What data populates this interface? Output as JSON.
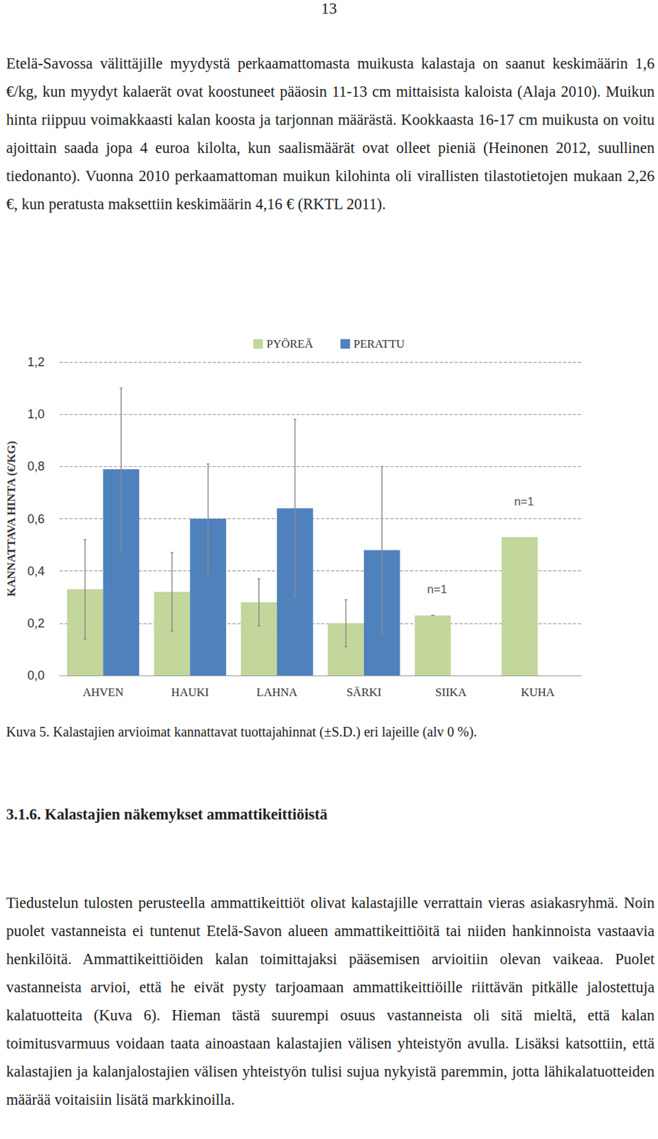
{
  "page_number": "13",
  "text_before": "Etelä-Savossa välittäjille myydystä perkaamattomasta muikusta kalastaja on saanut keskimäärin 1,6 €/kg, kun myydyt kalaerät ovat koostuneet pääosin 11-13 cm mittaisista kaloista (Alaja 2010). Muikun hinta riippuu voimakkaasti kalan koosta ja tarjonnan määrästä. Kookkaasta 16-17 cm muikusta on voitu ajoittain saada jopa 4 euroa kilolta, kun saalismäärät ovat olleet pieniä (Heinonen 2012, suullinen tiedonanto). Vuonna 2010 perkaamattoman muikun kilohinta oli virallisten tilastotietojen mukaan 2,26 €, kun peratusta maksettiin keskimäärin 4,16 € (RKTL 2011).",
  "chart_data": {
    "type": "bar",
    "ylabel": "KANNATTAVA HINTA (€/KG)",
    "categories": [
      "AHVEN",
      "HAUKI",
      "LAHNA",
      "SÄRKI",
      "SIIKA",
      "KUHA"
    ],
    "series": [
      {
        "name": "PYÖREÄ",
        "color": "#c3d69b",
        "values": [
          0.33,
          0.32,
          0.28,
          0.2,
          0.23,
          0.53
        ],
        "errors": [
          0.19,
          0.15,
          0.09,
          0.09,
          0,
          null
        ]
      },
      {
        "name": "PERATTU",
        "color": "#4f81bd",
        "values": [
          0.79,
          0.6,
          0.64,
          0.48,
          null,
          null
        ],
        "errors": [
          0.31,
          0.21,
          0.34,
          0.32,
          null,
          null
        ]
      }
    ],
    "annotations": [
      {
        "text": "n=1",
        "category": "SIIKA",
        "y": 0.33
      },
      {
        "text": "n=1",
        "category": "KUHA",
        "y": 0.665
      }
    ],
    "ylim": [
      0,
      1.2
    ],
    "yticks": [
      {
        "value": 0,
        "label": "0,0"
      },
      {
        "value": 0.2,
        "label": "0,2"
      },
      {
        "value": 0.4,
        "label": "0,4"
      },
      {
        "value": 0.6,
        "label": "0,6"
      },
      {
        "value": 0.8,
        "label": "0,8"
      },
      {
        "value": 1.0,
        "label": "1,0"
      },
      {
        "value": 1.2,
        "label": "1,2"
      }
    ],
    "grid": true,
    "legend": "top"
  },
  "caption": "Kuva 5. Kalastajien arvioimat kannattavat tuottajahinnat (±S.D.) eri lajeille (alv 0 %).",
  "heading": "3.1.6. Kalastajien näkemykset ammattikeittiöistä",
  "text_after": "Tiedustelun tulosten perusteella ammattikeittiöt olivat kalastajille verrattain vieras asiakasryhmä. Noin puolet vastanneista ei tuntenut Etelä-Savon alueen ammattikeittiöitä tai niiden hankinnoista vastaavia henkilöitä. Ammattikeittiöiden kalan toimittajaksi pääsemisen arvioitiin olevan vaikeaa. Puolet vastanneista arvioi, että he eivät pysty tarjoamaan ammattikeittiöille riittävän pitkälle jalostettuja kalatuotteita (Kuva 6). Hieman tästä suurempi osuus vastanneista oli sitä mieltä, että kalan toimitusvarmuus voidaan taata ainoastaan kalastajien välisen yhteistyön avulla. Lisäksi katsottiin, että kalastajien ja kalanjalostajien välisen yhteistyön tulisi sujua nykyistä paremmin, jotta lähikalatuotteiden määrää voitaisiin lisätä markkinoilla."
}
